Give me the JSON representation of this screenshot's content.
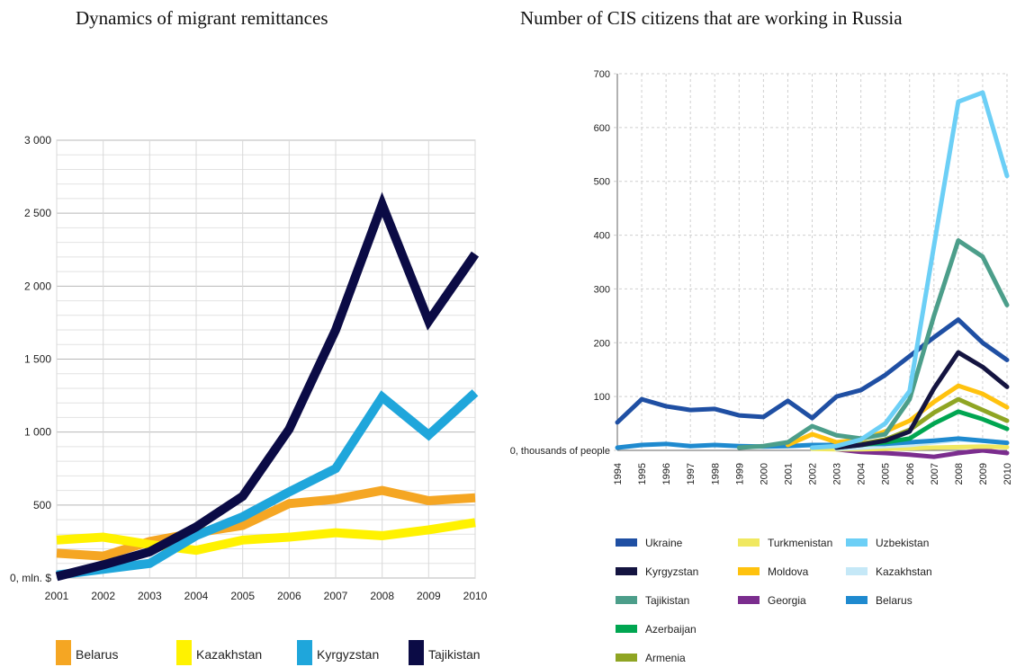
{
  "chart_data": [
    {
      "type": "line",
      "title": "Dynamics of migrant remittances",
      "xlabel": "",
      "ylabel": "",
      "x": [
        "2001",
        "2002",
        "2003",
        "2004",
        "2005",
        "2006",
        "2007",
        "2008",
        "2009",
        "2010"
      ],
      "ylim": [
        0,
        3000
      ],
      "yticks": [
        0,
        500,
        1000,
        1500,
        2000,
        2500,
        3000
      ],
      "ytick_labels": [
        "0, mln. $",
        "500",
        "1 000",
        "1 500",
        "2 000",
        "2 500",
        "3 000"
      ],
      "grid": true,
      "legend_position": "bottom",
      "series": [
        {
          "name": "Belarus",
          "color": "#F5A623",
          "values": [
            170,
            150,
            250,
            310,
            360,
            510,
            540,
            600,
            530,
            550
          ]
        },
        {
          "name": "Kazakhstan",
          "color": "#FFF200",
          "values": [
            260,
            280,
            230,
            190,
            260,
            280,
            310,
            290,
            330,
            380
          ]
        },
        {
          "name": "Kyrgyzstan",
          "color": "#1FA6DB",
          "values": [
            20,
            60,
            100,
            290,
            420,
            590,
            750,
            1240,
            980,
            1270
          ]
        },
        {
          "name": "Tajikistan",
          "color": "#0B0B45",
          "values": [
            10,
            90,
            180,
            350,
            560,
            1020,
            1700,
            2560,
            1760,
            2220
          ]
        }
      ]
    },
    {
      "type": "line",
      "title": "Number of CIS citizens that are working in Russia",
      "xlabel": "",
      "ylabel": "",
      "x": [
        "1994",
        "1995",
        "1996",
        "1997",
        "1998",
        "1999",
        "2000",
        "2001",
        "2002",
        "2003",
        "2004",
        "2005",
        "2006",
        "2007",
        "2008",
        "2009",
        "2010"
      ],
      "ylim": [
        0,
        700
      ],
      "yticks": [
        0,
        100,
        200,
        300,
        400,
        500,
        600,
        700
      ],
      "ytick_labels": [
        "0, thousands of people",
        "100",
        "200",
        "300",
        "400",
        "500",
        "600",
        "700"
      ],
      "grid": true,
      "legend_position": "bottom",
      "series": [
        {
          "name": "Ukraine",
          "color": "#1F4FA3",
          "values": [
            52,
            95,
            82,
            75,
            77,
            65,
            62,
            92,
            60,
            100,
            112,
            140,
            175,
            210,
            243,
            200,
            168
          ]
        },
        {
          "name": "Kyrgyzstan",
          "color": "#141440",
          "values": [
            null,
            null,
            null,
            null,
            null,
            null,
            null,
            null,
            null,
            5,
            10,
            18,
            35,
            115,
            182,
            155,
            118
          ]
        },
        {
          "name": "Tajikistan",
          "color": "#4C9E8A",
          "values": [
            null,
            null,
            null,
            null,
            null,
            5,
            8,
            15,
            45,
            28,
            22,
            30,
            95,
            250,
            390,
            360,
            270
          ]
        },
        {
          "name": "Azerbaijan",
          "color": "#00A651",
          "values": [
            null,
            null,
            null,
            null,
            null,
            null,
            null,
            null,
            null,
            5,
            10,
            15,
            22,
            50,
            72,
            58,
            40
          ]
        },
        {
          "name": "Armenia",
          "color": "#8FA523",
          "values": [
            null,
            null,
            null,
            null,
            null,
            null,
            null,
            null,
            null,
            8,
            12,
            20,
            38,
            70,
            95,
            75,
            55
          ]
        },
        {
          "name": "Turkmenistan",
          "color": "#F0E860",
          "values": [
            null,
            null,
            null,
            null,
            null,
            null,
            null,
            null,
            3,
            2,
            2,
            3,
            4,
            5,
            6,
            7,
            6
          ]
        },
        {
          "name": "Moldova",
          "color": "#FFC20E",
          "values": [
            null,
            null,
            null,
            null,
            null,
            null,
            null,
            10,
            30,
            15,
            20,
            35,
            55,
            90,
            120,
            105,
            80
          ]
        },
        {
          "name": "Georgia",
          "color": "#7B2D8E",
          "values": [
            null,
            null,
            null,
            null,
            null,
            null,
            null,
            null,
            null,
            2,
            -3,
            -5,
            -8,
            -12,
            -5,
            0,
            -5
          ]
        },
        {
          "name": "Uzbekistan",
          "color": "#6CCFF6",
          "values": [
            null,
            null,
            null,
            null,
            null,
            null,
            null,
            null,
            5,
            8,
            20,
            50,
            110,
            380,
            648,
            665,
            510
          ]
        },
        {
          "name": "Kazakhstan",
          "color": "#C5E8F7",
          "values": [
            null,
            null,
            null,
            null,
            null,
            null,
            null,
            null,
            null,
            3,
            5,
            8,
            10,
            15,
            20,
            18,
            14
          ]
        },
        {
          "name": "Belarus",
          "color": "#1F8ACF",
          "values": [
            5,
            10,
            12,
            8,
            10,
            8,
            7,
            8,
            10,
            10,
            12,
            12,
            15,
            18,
            22,
            18,
            14
          ]
        }
      ]
    }
  ]
}
